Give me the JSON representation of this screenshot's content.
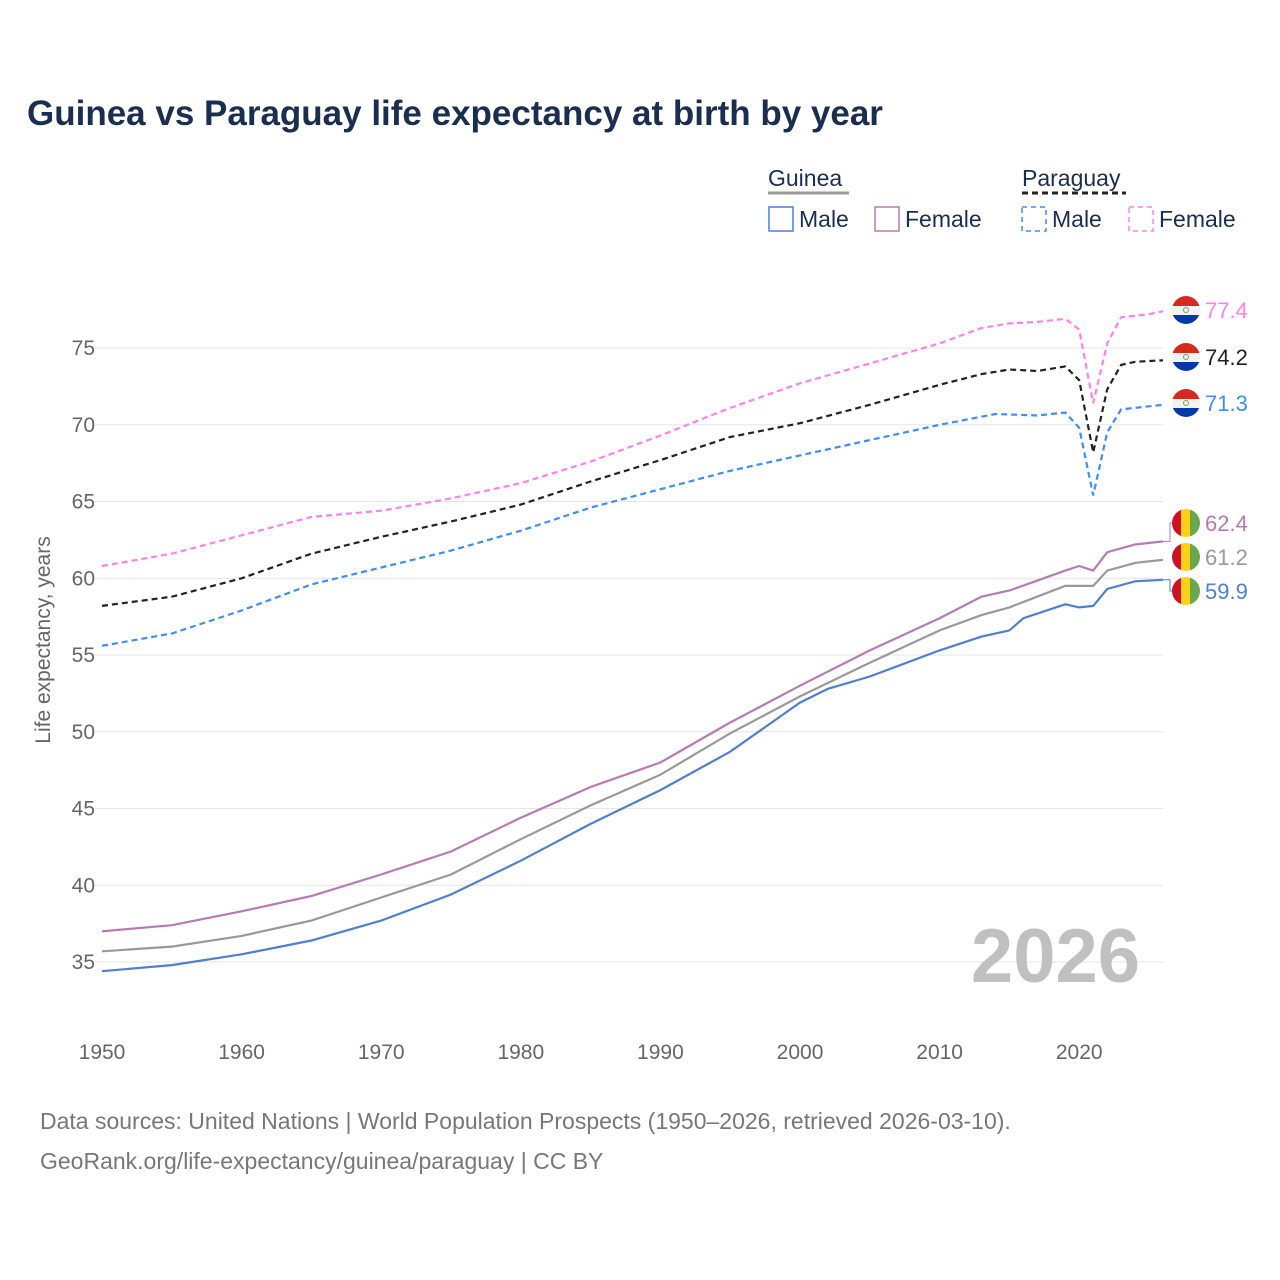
{
  "title": "Guinea vs Paraguay life expectancy at birth by year",
  "legend": {
    "groups": [
      {
        "name": "Guinea",
        "items": [
          "Male",
          "Female"
        ]
      },
      {
        "name": "Paraguay",
        "items": [
          "Male",
          "Female"
        ]
      }
    ]
  },
  "watermark_year": "2026",
  "sources": {
    "line1": "Data sources: United Nations | World Population Prospects (1950–2026, retrieved 2026-03-10).",
    "line2": "GeoRank.org/life-expectancy/guinea/paraguay | CC BY"
  },
  "chart_data": {
    "type": "line",
    "title": "Guinea vs Paraguay life expectancy at birth by year",
    "xlabel": "",
    "ylabel": "Life expectancy, years",
    "xlim": [
      1950,
      2026
    ],
    "ylim": [
      33,
      79
    ],
    "x_ticks": [
      1950,
      1960,
      1970,
      1980,
      1990,
      2000,
      2010,
      2020
    ],
    "y_ticks": [
      35,
      40,
      45,
      50,
      55,
      60,
      65,
      70,
      75
    ],
    "grid": true,
    "legend_position": "top-right",
    "series": [
      {
        "name": "Paraguay Female",
        "country": "Paraguay",
        "color": "#ff80f0",
        "dashed": true,
        "end_label": "77.4",
        "points": [
          [
            1950,
            60.8
          ],
          [
            1955,
            61.6
          ],
          [
            1960,
            62.8
          ],
          [
            1965,
            64.0
          ],
          [
            1970,
            64.4
          ],
          [
            1975,
            65.2
          ],
          [
            1980,
            66.2
          ],
          [
            1985,
            67.6
          ],
          [
            1990,
            69.3
          ],
          [
            1995,
            71.1
          ],
          [
            2000,
            72.7
          ],
          [
            2005,
            74.0
          ],
          [
            2010,
            75.3
          ],
          [
            2013,
            76.3
          ],
          [
            2015,
            76.6
          ],
          [
            2017,
            76.7
          ],
          [
            2019,
            76.9
          ],
          [
            2020,
            76.2
          ],
          [
            2021,
            71.4
          ],
          [
            2022,
            75.3
          ],
          [
            2023,
            77.0
          ],
          [
            2024,
            77.1
          ],
          [
            2025,
            77.2
          ],
          [
            2026,
            77.4
          ]
        ]
      },
      {
        "name": "Paraguay",
        "country": "Paraguay",
        "color": "#222222",
        "dashed": true,
        "end_label": "74.2",
        "points": [
          [
            1950,
            58.2
          ],
          [
            1955,
            58.8
          ],
          [
            1960,
            60.0
          ],
          [
            1965,
            61.6
          ],
          [
            1970,
            62.7
          ],
          [
            1975,
            63.7
          ],
          [
            1980,
            64.8
          ],
          [
            1985,
            66.3
          ],
          [
            1990,
            67.7
          ],
          [
            1995,
            69.2
          ],
          [
            2000,
            70.1
          ],
          [
            2005,
            71.3
          ],
          [
            2010,
            72.6
          ],
          [
            2013,
            73.3
          ],
          [
            2015,
            73.6
          ],
          [
            2017,
            73.5
          ],
          [
            2019,
            73.8
          ],
          [
            2020,
            72.9
          ],
          [
            2021,
            68.2
          ],
          [
            2022,
            72.3
          ],
          [
            2023,
            73.9
          ],
          [
            2024,
            74.1
          ],
          [
            2026,
            74.2
          ]
        ]
      },
      {
        "name": "Paraguay Male",
        "country": "Paraguay",
        "color": "#3d8ef5",
        "dashed": true,
        "end_label": "71.3",
        "points": [
          [
            1950,
            55.6
          ],
          [
            1955,
            56.4
          ],
          [
            1960,
            57.9
          ],
          [
            1965,
            59.6
          ],
          [
            1970,
            60.7
          ],
          [
            1975,
            61.8
          ],
          [
            1980,
            63.1
          ],
          [
            1985,
            64.6
          ],
          [
            1990,
            65.8
          ],
          [
            1995,
            67.0
          ],
          [
            2000,
            68.0
          ],
          [
            2005,
            69.0
          ],
          [
            2010,
            70.0
          ],
          [
            2014,
            70.7
          ],
          [
            2017,
            70.6
          ],
          [
            2019,
            70.8
          ],
          [
            2020,
            69.8
          ],
          [
            2021,
            65.4
          ],
          [
            2022,
            69.5
          ],
          [
            2023,
            71.0
          ],
          [
            2026,
            71.3
          ]
        ]
      },
      {
        "name": "Guinea Female",
        "country": "Guinea",
        "color": "#b77bb4",
        "dashed": false,
        "end_label": "62.4",
        "points": [
          [
            1950,
            37.0
          ],
          [
            1955,
            37.4
          ],
          [
            1960,
            38.3
          ],
          [
            1965,
            39.3
          ],
          [
            1970,
            40.7
          ],
          [
            1975,
            42.2
          ],
          [
            1980,
            44.4
          ],
          [
            1985,
            46.4
          ],
          [
            1990,
            48.0
          ],
          [
            1995,
            50.6
          ],
          [
            2000,
            53.0
          ],
          [
            2005,
            55.3
          ],
          [
            2010,
            57.4
          ],
          [
            2013,
            58.8
          ],
          [
            2015,
            59.2
          ],
          [
            2019,
            60.5
          ],
          [
            2020,
            60.8
          ],
          [
            2021,
            60.5
          ],
          [
            2022,
            61.7
          ],
          [
            2024,
            62.2
          ],
          [
            2026,
            62.4
          ]
        ]
      },
      {
        "name": "Guinea",
        "country": "Guinea",
        "color": "#999999",
        "dashed": false,
        "end_label": "61.2",
        "points": [
          [
            1950,
            35.7
          ],
          [
            1955,
            36.0
          ],
          [
            1960,
            36.7
          ],
          [
            1965,
            37.7
          ],
          [
            1970,
            39.2
          ],
          [
            1975,
            40.7
          ],
          [
            1980,
            43.0
          ],
          [
            1985,
            45.2
          ],
          [
            1990,
            47.2
          ],
          [
            1995,
            49.9
          ],
          [
            2000,
            52.3
          ],
          [
            2005,
            54.5
          ],
          [
            2010,
            56.6
          ],
          [
            2013,
            57.6
          ],
          [
            2015,
            58.1
          ],
          [
            2019,
            59.5
          ],
          [
            2021,
            59.5
          ],
          [
            2022,
            60.5
          ],
          [
            2024,
            61.0
          ],
          [
            2026,
            61.2
          ]
        ]
      },
      {
        "name": "Guinea Male",
        "country": "Guinea",
        "color": "#4f7fd0",
        "dashed": false,
        "end_label": "59.9",
        "points": [
          [
            1950,
            34.4
          ],
          [
            1955,
            34.8
          ],
          [
            1960,
            35.5
          ],
          [
            1965,
            36.4
          ],
          [
            1970,
            37.7
          ],
          [
            1975,
            39.4
          ],
          [
            1980,
            41.6
          ],
          [
            1985,
            44.0
          ],
          [
            1990,
            46.2
          ],
          [
            1995,
            48.7
          ],
          [
            2000,
            51.9
          ],
          [
            2002,
            52.8
          ],
          [
            2005,
            53.6
          ],
          [
            2010,
            55.3
          ],
          [
            2013,
            56.2
          ],
          [
            2015,
            56.6
          ],
          [
            2016,
            57.4
          ],
          [
            2019,
            58.3
          ],
          [
            2020,
            58.1
          ],
          [
            2021,
            58.2
          ],
          [
            2022,
            59.3
          ],
          [
            2024,
            59.8
          ],
          [
            2026,
            59.9
          ]
        ]
      }
    ]
  }
}
